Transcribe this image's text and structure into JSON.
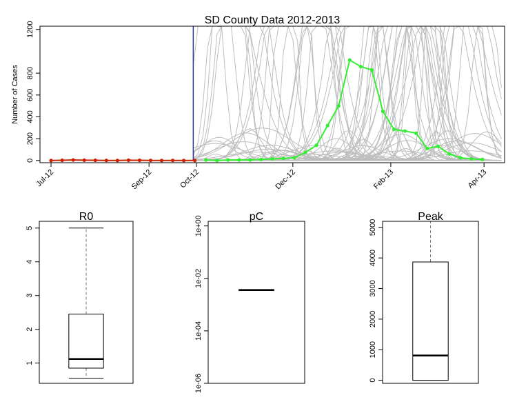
{
  "chart_data": [
    {
      "type": "line",
      "title": "SD County Data 2012-2013",
      "ylabel": "Number of Cases",
      "xlabel": "",
      "xlim": [
        "2012-06-24",
        "2013-04-14"
      ],
      "ylim": [
        -20,
        1230
      ],
      "x_ticks": [
        {
          "date": "2012-07-01",
          "label": "Jul-12"
        },
        {
          "date": "2012-09-01",
          "label": "Sep-12"
        },
        {
          "date": "2012-10-01",
          "label": "Oct-12"
        },
        {
          "date": "2012-12-01",
          "label": "Dec-12"
        },
        {
          "date": "2013-02-01",
          "label": "Feb-13"
        },
        {
          "date": "2013-04-01",
          "label": "Apr-13"
        }
      ],
      "y_ticks": [
        0,
        200,
        400,
        600,
        800,
        1200
      ],
      "cutoff_date": "2012-09-29",
      "colors": {
        "observed": "#cc2200",
        "forecast": "#33ee33",
        "cutoff": "#3333aa",
        "simulations": "#bbbbbb"
      },
      "observed": {
        "x": [
          "2012-07-01",
          "2012-07-08",
          "2012-07-15",
          "2012-07-22",
          "2012-07-29",
          "2012-08-05",
          "2012-08-12",
          "2012-08-19",
          "2012-08-26",
          "2012-09-02",
          "2012-09-09",
          "2012-09-16",
          "2012-09-23",
          "2012-09-30"
        ],
        "y": [
          0,
          2,
          5,
          3,
          2,
          1,
          0,
          3,
          2,
          1,
          0,
          1,
          0,
          0
        ]
      },
      "forecast": {
        "x": [
          "2012-10-07",
          "2012-10-14",
          "2012-10-21",
          "2012-10-28",
          "2012-11-04",
          "2012-11-11",
          "2012-11-18",
          "2012-11-25",
          "2012-12-02",
          "2012-12-09",
          "2012-12-16",
          "2012-12-23",
          "2012-12-30",
          "2013-01-06",
          "2013-01-13",
          "2013-01-20",
          "2013-01-27",
          "2013-02-03",
          "2013-02-10",
          "2013-02-17",
          "2013-02-24",
          "2013-03-03",
          "2013-03-10",
          "2013-03-17",
          "2013-03-24",
          "2013-03-31"
        ],
        "y": [
          5,
          0,
          5,
          5,
          5,
          10,
          15,
          20,
          25,
          75,
          140,
          320,
          500,
          920,
          860,
          830,
          450,
          285,
          270,
          250,
          110,
          130,
          60,
          25,
          15,
          10
        ]
      }
    },
    {
      "type": "box",
      "title": "R0",
      "ylim": [
        0.4,
        5.2
      ],
      "y_ticks": [
        1,
        2,
        3,
        4,
        5
      ],
      "y_tick_labels": [
        "1",
        "2",
        "3",
        "4",
        "5"
      ],
      "box": {
        "whisker_low": 0.55,
        "q1": 0.85,
        "median": 1.12,
        "q3": 2.45,
        "whisker_high": 5.0
      }
    },
    {
      "type": "box",
      "title": "pC",
      "log_scale": true,
      "ylim": [
        1e-06,
        1.5
      ],
      "y_ticks": [
        1e-06,
        0.0001,
        0.01,
        1
      ],
      "y_tick_labels": [
        "1e-06",
        "1e-04",
        "1e-02",
        "1e+00"
      ],
      "box": {
        "whisker_low": 0.0036,
        "q1": 0.0036,
        "median": 0.0036,
        "q3": 0.0036,
        "whisker_high": 0.0036
      }
    },
    {
      "type": "box",
      "title": "Peak",
      "ylim": [
        -100,
        5200
      ],
      "y_ticks": [
        0,
        1000,
        2000,
        3000,
        4000,
        5000
      ],
      "y_tick_labels": [
        "0",
        "1000",
        "2000",
        "3000",
        "4000",
        "5000"
      ],
      "box": {
        "whisker_low": 0,
        "q1": 0,
        "median": 810,
        "q3": 3870,
        "whisker_high": 5200
      }
    }
  ]
}
